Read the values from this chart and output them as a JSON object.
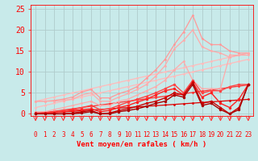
{
  "background_color": "#c8eaea",
  "grid_color": "#b0cccc",
  "xlabel": "Vent moyen/en rafales ( km/h )",
  "ylabel_ticks": [
    0,
    5,
    10,
    15,
    20,
    25
  ],
  "xlim": [
    -0.5,
    23.5
  ],
  "ylim": [
    -0.5,
    26
  ],
  "x": [
    0,
    1,
    2,
    3,
    4,
    5,
    6,
    7,
    8,
    9,
    10,
    11,
    12,
    13,
    14,
    15,
    16,
    17,
    18,
    19,
    20,
    21,
    22,
    23
  ],
  "lines": [
    {
      "y": [
        3.0,
        3.0,
        3.2,
        3.5,
        4.0,
        5.2,
        5.8,
        3.8,
        3.8,
        4.8,
        5.5,
        6.5,
        8.5,
        10.5,
        13.0,
        16.5,
        19.5,
        23.5,
        18.0,
        16.5,
        16.5,
        15.0,
        14.5,
        14.5
      ],
      "color": "#ff9999",
      "lw": 0.9,
      "marker": "o",
      "ms": 2.0,
      "zorder": 3
    },
    {
      "y": [
        3.0,
        3.0,
        3.0,
        3.2,
        3.5,
        4.5,
        5.0,
        3.0,
        3.0,
        4.0,
        4.8,
        5.8,
        7.0,
        9.0,
        11.5,
        15.5,
        17.5,
        20.0,
        16.0,
        15.0,
        14.5,
        13.5,
        14.0,
        14.5
      ],
      "color": "#ffaaaa",
      "lw": 0.9,
      "marker": "o",
      "ms": 2.0,
      "zorder": 3
    },
    {
      "y": [
        3.0,
        3.5,
        4.0,
        4.5,
        5.0,
        5.5,
        6.0,
        6.5,
        7.0,
        7.5,
        8.0,
        8.5,
        9.0,
        9.5,
        10.0,
        10.5,
        11.0,
        11.5,
        12.0,
        12.5,
        13.0,
        13.5,
        14.0,
        14.5
      ],
      "color": "#ffbbbb",
      "lw": 0.9,
      "marker": "o",
      "ms": 2.0,
      "zorder": 2
    },
    {
      "y": [
        1.5,
        2.0,
        2.5,
        3.0,
        3.5,
        4.0,
        4.5,
        5.0,
        5.5,
        6.0,
        6.5,
        7.0,
        7.5,
        8.0,
        8.5,
        9.0,
        9.5,
        10.0,
        10.5,
        11.0,
        11.5,
        12.0,
        12.5,
        13.0
      ],
      "color": "#ffbbbb",
      "lw": 0.9,
      "marker": "o",
      "ms": 2.0,
      "zorder": 2
    },
    {
      "y": [
        0.5,
        0.5,
        1.0,
        1.5,
        2.0,
        2.5,
        3.0,
        2.0,
        2.0,
        3.0,
        3.5,
        4.5,
        5.5,
        6.5,
        8.0,
        10.5,
        12.5,
        8.0,
        6.0,
        6.0,
        6.0,
        14.0,
        14.0,
        14.0
      ],
      "color": "#ffaaaa",
      "lw": 0.9,
      "marker": "o",
      "ms": 2.0,
      "zorder": 3
    },
    {
      "y": [
        0.2,
        0.3,
        0.5,
        0.8,
        1.0,
        1.5,
        2.0,
        1.0,
        1.2,
        2.0,
        2.8,
        3.5,
        4.2,
        5.0,
        6.0,
        7.0,
        5.0,
        8.0,
        5.0,
        5.5,
        5.5,
        6.5,
        7.0,
        7.0
      ],
      "color": "#ff4444",
      "lw": 1.0,
      "marker": "o",
      "ms": 2.5,
      "zorder": 4
    },
    {
      "y": [
        0.0,
        0.1,
        0.3,
        0.5,
        0.8,
        1.0,
        1.2,
        0.5,
        0.8,
        1.5,
        2.0,
        2.8,
        3.5,
        4.5,
        5.5,
        6.0,
        4.5,
        7.5,
        4.0,
        5.0,
        2.5,
        1.5,
        3.5,
        7.0
      ],
      "color": "#ff2222",
      "lw": 1.0,
      "marker": "o",
      "ms": 2.5,
      "zorder": 4
    },
    {
      "y": [
        0.0,
        0.3,
        0.6,
        0.9,
        1.2,
        1.5,
        1.8,
        2.1,
        2.4,
        2.7,
        3.0,
        3.3,
        3.6,
        3.9,
        4.2,
        4.5,
        4.8,
        5.1,
        5.4,
        5.7,
        6.0,
        6.3,
        6.6,
        6.9
      ],
      "color": "#ff3333",
      "lw": 0.9,
      "marker": "o",
      "ms": 2.0,
      "zorder": 2
    },
    {
      "y": [
        0.0,
        0.15,
        0.3,
        0.45,
        0.6,
        0.75,
        0.9,
        1.05,
        1.2,
        1.35,
        1.5,
        1.65,
        1.8,
        1.95,
        2.1,
        2.25,
        2.4,
        2.55,
        2.7,
        2.85,
        3.0,
        3.15,
        3.3,
        3.45
      ],
      "color": "#dd0000",
      "lw": 0.9,
      "marker": "o",
      "ms": 2.0,
      "zorder": 2
    },
    {
      "y": [
        0.0,
        0.0,
        0.0,
        0.0,
        0.2,
        0.5,
        0.8,
        0.0,
        0.2,
        0.8,
        1.2,
        1.8,
        2.5,
        3.0,
        3.8,
        5.0,
        4.5,
        7.5,
        2.5,
        3.0,
        1.5,
        0.0,
        1.5,
        7.0
      ],
      "color": "#cc0000",
      "lw": 1.0,
      "marker": "o",
      "ms": 2.5,
      "zorder": 4
    },
    {
      "y": [
        0.0,
        0.0,
        0.0,
        0.0,
        0.0,
        0.2,
        0.5,
        0.0,
        0.0,
        0.5,
        0.8,
        1.2,
        1.8,
        2.5,
        3.0,
        4.5,
        4.0,
        7.0,
        2.0,
        2.5,
        1.0,
        0.0,
        1.0,
        7.0
      ],
      "color": "#aa0000",
      "lw": 1.0,
      "marker": "o",
      "ms": 2.5,
      "zorder": 4
    }
  ],
  "tick_color": "#ff0000",
  "label_color": "#ff0000",
  "xlabel_fontsize": 6.5,
  "ytick_fontsize": 7,
  "xtick_fontsize": 5.5,
  "arrow_color": "#ff3333"
}
